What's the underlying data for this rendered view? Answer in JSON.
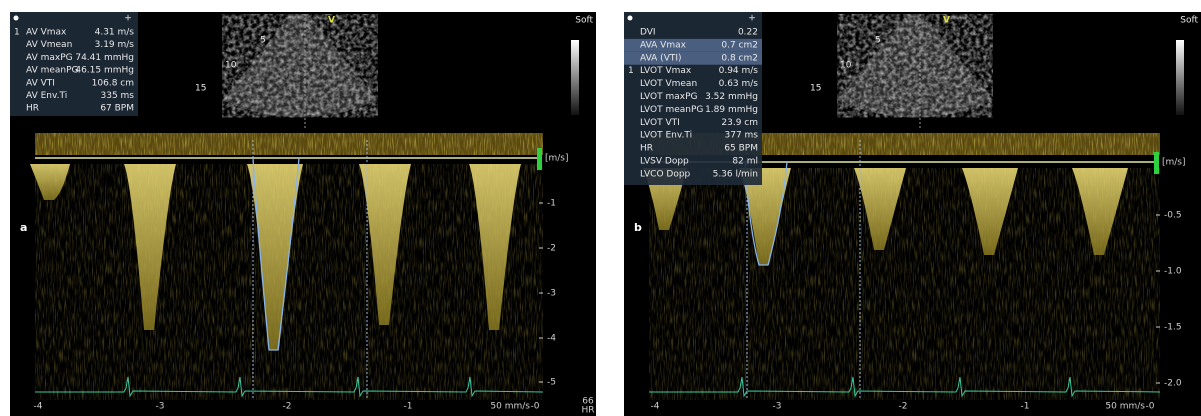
{
  "panels": [
    {
      "label": "a",
      "preset": "Soft",
      "orientation": "V",
      "depth_marks": [
        "5",
        "10",
        "15"
      ],
      "marker": "1",
      "measurements": [
        {
          "name": "AV Vmax",
          "value": "4.31 m/s"
        },
        {
          "name": "AV Vmean",
          "value": "3.19 m/s"
        },
        {
          "name": "AV maxPG",
          "value": "74.41 mmHg"
        },
        {
          "name": "AV meanPG",
          "value": "46.15 mmHg"
        },
        {
          "name": "AV VTI",
          "value": "106.8 cm"
        },
        {
          "name": "AV Env.Ti",
          "value": "335 ms"
        },
        {
          "name": "HR",
          "value": "67 BPM"
        }
      ],
      "velocity_unit": "[m/s]",
      "velocity_ticks": [
        "-1",
        "-2",
        "-3",
        "-4",
        "-5"
      ],
      "time_ticks": [
        "-4",
        "-3",
        "-2",
        "-1",
        "-0"
      ],
      "sweep_speed": "50 mm/s",
      "hr_readout": [
        "66",
        "HR"
      ]
    },
    {
      "label": "b",
      "preset": "Soft",
      "orientation": "V",
      "depth_marks": [
        "5",
        "10",
        "15"
      ],
      "marker": "1",
      "measurements": [
        {
          "name": "DVI",
          "value": "0.22"
        },
        {
          "name": "AVA Vmax",
          "value": "0.7 cm2"
        },
        {
          "name": "AVA (VTI)",
          "value": "0.8 cm2"
        },
        {
          "name": "LVOT Vmax",
          "value": "0.94 m/s"
        },
        {
          "name": "LVOT Vmean",
          "value": "0.63 m/s"
        },
        {
          "name": "LVOT maxPG",
          "value": "3.52 mmHg"
        },
        {
          "name": "LVOT meanPG",
          "value": "1.89 mmHg"
        },
        {
          "name": "LVOT VTI",
          "value": "23.9 cm"
        },
        {
          "name": "LVOT Env.Ti",
          "value": "377 ms"
        },
        {
          "name": "HR",
          "value": "65 BPM"
        },
        {
          "name": "LVSV Dopp",
          "value": "82 ml"
        },
        {
          "name": "LVCO Dopp",
          "value": "5.36 l/min"
        }
      ],
      "velocity_unit": "[m/s]",
      "velocity_ticks": [
        "-0.5",
        "-1.0",
        "-1.5",
        "-2.0"
      ],
      "time_ticks": [
        "-4",
        "-3",
        "-2",
        "-1",
        "-0"
      ],
      "sweep_speed": "50 mm/s"
    }
  ]
}
